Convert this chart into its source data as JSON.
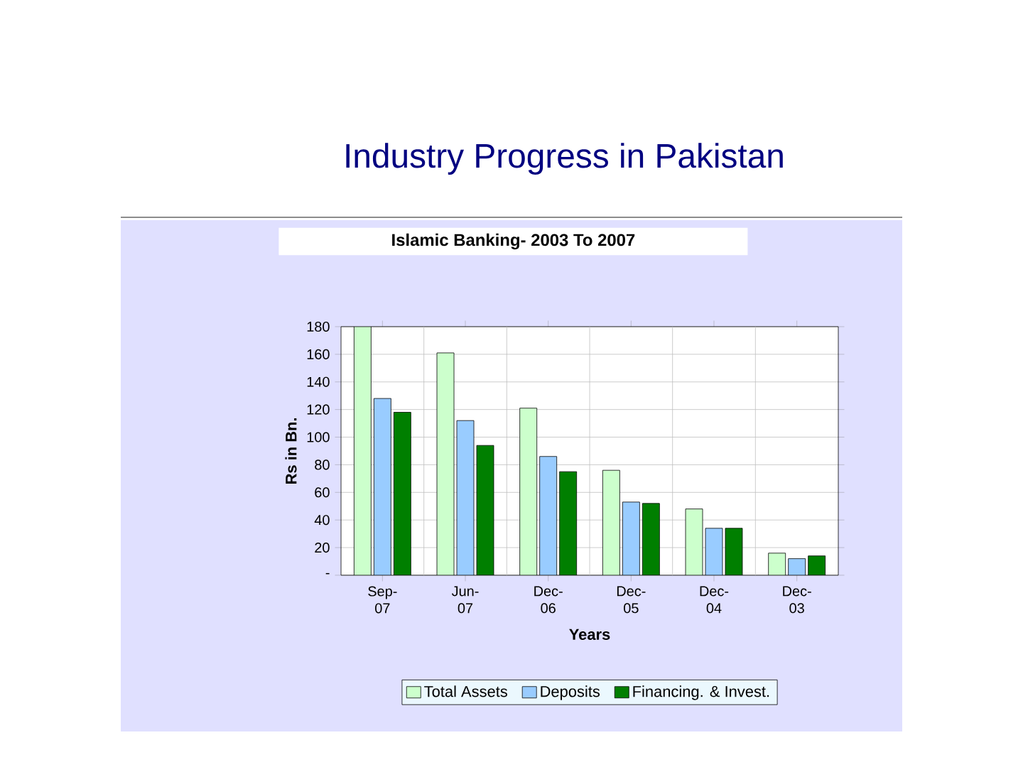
{
  "chart_data": {
    "type": "bar",
    "title": "Industry Progress in Pakistan",
    "subtitle": "Islamic Banking- 2003 To 2007",
    "xlabel": "Years",
    "ylabel": "Rs in Bn.",
    "categories": [
      "Sep-07",
      "Jun-07",
      "Dec-06",
      "Dec-05",
      "Dec-04",
      "Dec-03"
    ],
    "series": [
      {
        "name": "Total Assets",
        "color": "#ccffcc",
        "values": [
          180,
          161,
          121,
          76,
          48,
          16
        ]
      },
      {
        "name": "Deposits",
        "color": "#99ccff",
        "values": [
          128,
          112,
          86,
          53,
          34,
          12
        ]
      },
      {
        "name": "Financing. & Invest.",
        "color": "#007f00",
        "values": [
          118,
          94,
          75,
          52,
          34,
          14
        ]
      }
    ],
    "ylim": [
      0,
      180
    ],
    "yticks": [
      {
        "value": 0,
        "label": "-"
      },
      20,
      40,
      60,
      80,
      100,
      120,
      140,
      160,
      180
    ],
    "grid": true,
    "legend": "bottom"
  }
}
